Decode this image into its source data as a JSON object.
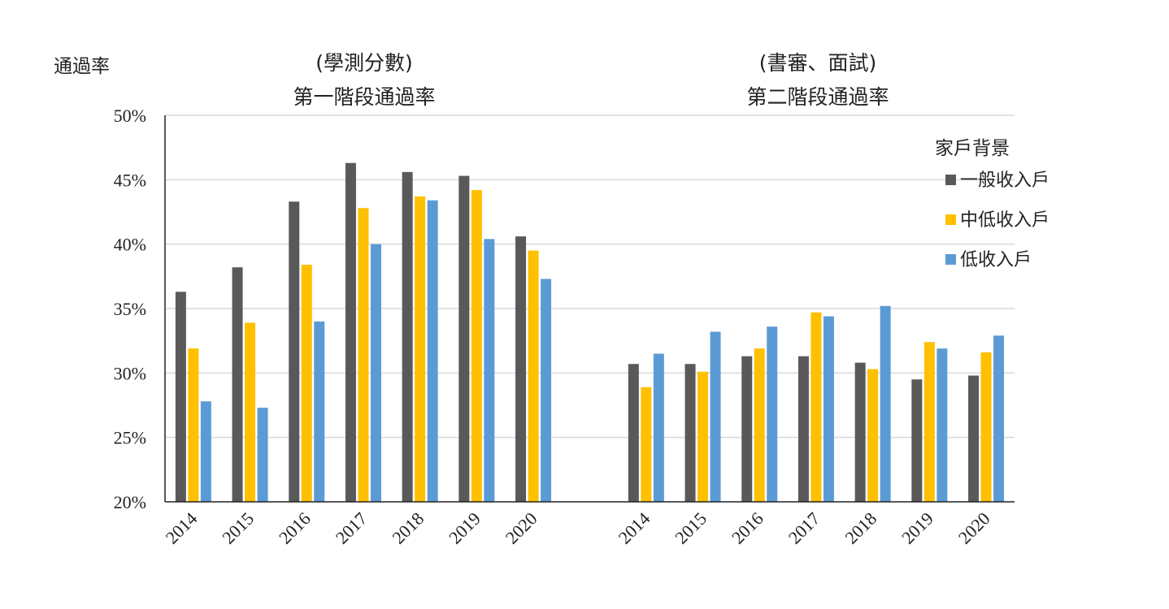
{
  "chart_data": {
    "type": "bar",
    "ylabel": "通過率",
    "ylim": [
      20,
      50
    ],
    "yticks": [
      "50%",
      "45%",
      "40%",
      "35%",
      "30%",
      "25%",
      "20%"
    ],
    "grid": "horizontal",
    "legend": {
      "title": "家戶背景",
      "placement": "right",
      "entries": [
        "一般收入戶",
        "中低收入戶",
        "低收入戶"
      ]
    },
    "colors": [
      "#595959",
      "#FFC000",
      "#5B9BD5"
    ],
    "groups": [
      {
        "title_line1": "(學測分數)",
        "title_line2": "第一階段通過率",
        "categories": [
          "2014",
          "2015",
          "2016",
          "2017",
          "2018",
          "2019",
          "2020"
        ],
        "series": [
          {
            "name": "一般收入戶",
            "values": [
              36.3,
              38.2,
              43.3,
              46.3,
              45.6,
              45.3,
              40.6
            ]
          },
          {
            "name": "中低收入戶",
            "values": [
              31.9,
              33.9,
              38.4,
              42.8,
              43.7,
              44.2,
              39.5
            ]
          },
          {
            "name": "低收入戶",
            "values": [
              27.8,
              27.3,
              34.0,
              40.0,
              43.4,
              40.4,
              37.3
            ]
          }
        ]
      },
      {
        "title_line1": "(書審、面試)",
        "title_line2": "第二階段通過率",
        "categories": [
          "2014",
          "2015",
          "2016",
          "2017",
          "2018",
          "2019",
          "2020"
        ],
        "series": [
          {
            "name": "一般收入戶",
            "values": [
              30.7,
              30.7,
              31.3,
              31.3,
              30.8,
              29.5,
              29.8
            ]
          },
          {
            "name": "中低收入戶",
            "values": [
              28.9,
              30.1,
              31.9,
              34.7,
              30.3,
              32.4,
              31.6
            ]
          },
          {
            "name": "低收入戶",
            "values": [
              31.5,
              33.2,
              33.6,
              34.4,
              35.2,
              31.9,
              32.9
            ]
          }
        ]
      }
    ]
  }
}
